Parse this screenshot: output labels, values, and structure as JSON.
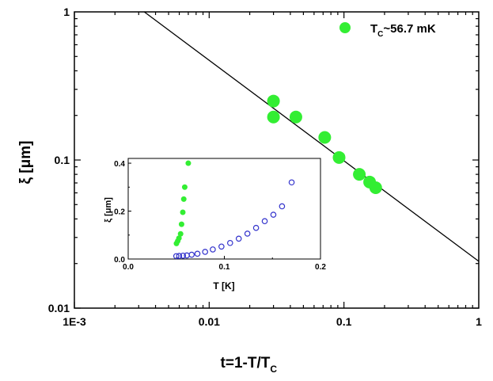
{
  "chart_data": [
    {
      "type": "scatter",
      "scale": "log-log",
      "xlabel": "t=1-T/T",
      "xlabel_sub": "C",
      "ylabel": "ξ [μm]",
      "xlim": [
        0.001,
        1
      ],
      "ylim": [
        0.01,
        1
      ],
      "x_ticks": [
        0.001,
        0.01,
        0.1,
        1
      ],
      "x_tick_labels": [
        "1E-3",
        "0.01",
        "0.1",
        "1"
      ],
      "y_ticks": [
        0.01,
        0.1,
        1
      ],
      "y_tick_labels": [
        "0.01",
        "0.1",
        "1"
      ],
      "legend": {
        "label": "T",
        "label_sub": "C",
        "label_rest": "~56.7 mK",
        "position": "top-right",
        "color": "#33ee33"
      },
      "series": [
        {
          "name": "TC~56.7 mK",
          "color": "#33ee33",
          "marker": "filled-circle",
          "points": [
            {
              "x": 0.03,
              "y": 0.25
            },
            {
              "x": 0.03,
              "y": 0.195
            },
            {
              "x": 0.044,
              "y": 0.195
            },
            {
              "x": 0.072,
              "y": 0.142
            },
            {
              "x": 0.092,
              "y": 0.104
            },
            {
              "x": 0.13,
              "y": 0.08
            },
            {
              "x": 0.155,
              "y": 0.071
            },
            {
              "x": 0.172,
              "y": 0.065
            }
          ]
        },
        {
          "name": "fit",
          "type": "line",
          "color": "#000000",
          "points": [
            {
              "x": 0.0033,
              "y": 1.0
            },
            {
              "x": 1.0,
              "y": 0.0207
            }
          ]
        }
      ]
    },
    {
      "type": "scatter",
      "role": "inset",
      "xlabel": "T [K]",
      "ylabel": "ξ [μm]",
      "xlim": [
        0.0,
        0.2
      ],
      "ylim": [
        0.0,
        0.42
      ],
      "x_ticks": [
        0.0,
        0.1,
        0.2
      ],
      "x_tick_labels": [
        "0.0",
        "0.1",
        "0.2"
      ],
      "y_ticks": [
        0.0,
        0.2,
        0.4
      ],
      "y_tick_labels": [
        "0.0",
        "0.2",
        "0.4"
      ],
      "series": [
        {
          "name": "filled",
          "color": "#33ee33",
          "marker": "filled-circle",
          "points": [
            {
              "x": 0.0502,
              "y": 0.065
            },
            {
              "x": 0.0515,
              "y": 0.075
            },
            {
              "x": 0.0528,
              "y": 0.087
            },
            {
              "x": 0.0545,
              "y": 0.105
            },
            {
              "x": 0.0555,
              "y": 0.145
            },
            {
              "x": 0.0568,
              "y": 0.195
            },
            {
              "x": 0.0578,
              "y": 0.25
            },
            {
              "x": 0.0588,
              "y": 0.3
            },
            {
              "x": 0.0625,
              "y": 0.4
            }
          ]
        },
        {
          "name": "open",
          "color": "#3333cc",
          "marker": "open-circle",
          "points": [
            {
              "x": 0.05,
              "y": 0.012
            },
            {
              "x": 0.053,
              "y": 0.013
            },
            {
              "x": 0.057,
              "y": 0.014
            },
            {
              "x": 0.061,
              "y": 0.015
            },
            {
              "x": 0.066,
              "y": 0.018
            },
            {
              "x": 0.072,
              "y": 0.022
            },
            {
              "x": 0.08,
              "y": 0.03
            },
            {
              "x": 0.088,
              "y": 0.04
            },
            {
              "x": 0.097,
              "y": 0.052
            },
            {
              "x": 0.106,
              "y": 0.067
            },
            {
              "x": 0.115,
              "y": 0.085
            },
            {
              "x": 0.124,
              "y": 0.106
            },
            {
              "x": 0.133,
              "y": 0.13
            },
            {
              "x": 0.142,
              "y": 0.158
            },
            {
              "x": 0.151,
              "y": 0.185
            },
            {
              "x": 0.16,
              "y": 0.22
            },
            {
              "x": 0.17,
              "y": 0.32
            }
          ]
        }
      ]
    }
  ]
}
